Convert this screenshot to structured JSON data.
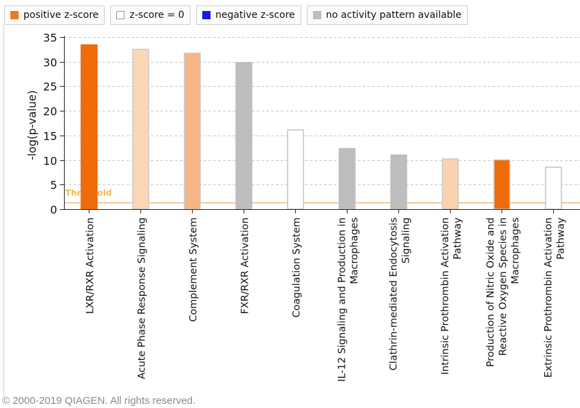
{
  "legend": {
    "items": [
      {
        "label": "positive z-score",
        "color": "#f07a1a",
        "border": "#f07a1a"
      },
      {
        "label": "z-score = 0",
        "color": "#ffffff",
        "border": "#9a9a9a"
      },
      {
        "label": "negative z-score",
        "color": "#1a1ae0",
        "border": "#1a1ae0"
      },
      {
        "label": "no activity pattern available",
        "color": "#bdbdbd",
        "border": "#bdbdbd"
      }
    ]
  },
  "chart_data": {
    "type": "bar",
    "ylabel": "-log(p-value)",
    "xlabel": "",
    "ylim": [
      0,
      35
    ],
    "yticks": [
      0,
      5,
      10,
      15,
      20,
      25,
      30,
      35
    ],
    "grid": true,
    "threshold": {
      "label": "Threshold",
      "value": 1.3
    },
    "categories": [
      {
        "lines": [
          "LXR/RXR Activation"
        ],
        "value": 33.5,
        "fill": "#ee6c0a",
        "stroke": "#e3670f"
      },
      {
        "lines": [
          "Acute Phase Response Signaling"
        ],
        "value": 32.6,
        "fill": "#fbd6b6",
        "stroke": "#c9c9c9"
      },
      {
        "lines": [
          "Complement System"
        ],
        "value": 31.8,
        "fill": "#f5b585",
        "stroke": "#c9c9c9"
      },
      {
        "lines": [
          "FXR/RXR Activation"
        ],
        "value": 29.9,
        "fill": "#bdbdbd",
        "stroke": "#bdbdbd"
      },
      {
        "lines": [
          "Coagulation System"
        ],
        "value": 16.2,
        "fill": "#ffffff",
        "stroke": "#c2c2c2"
      },
      {
        "lines": [
          "IL-12 Signaling and Production in",
          "Macrophages"
        ],
        "value": 12.4,
        "fill": "#bdbdbd",
        "stroke": "#bdbdbd"
      },
      {
        "lines": [
          "Clathrin-mediated Endocytosis",
          "Signaling"
        ],
        "value": 11.1,
        "fill": "#bdbdbd",
        "stroke": "#bdbdbd"
      },
      {
        "lines": [
          "Intrinsic Prothrombin Activation",
          "Pathway"
        ],
        "value": 10.3,
        "fill": "#fbd2b0",
        "stroke": "#c9c9c9"
      },
      {
        "lines": [
          "Production of Nitric Oxide and",
          "Reactive Oxygen Species in",
          "Macrophages"
        ],
        "value": 10.1,
        "fill": "#ee6c0a",
        "stroke": "#c9c9c9"
      },
      {
        "lines": [
          "Extrinsic Prothrombin Activation",
          "Pathway"
        ],
        "value": 8.6,
        "fill": "#ffffff",
        "stroke": "#c2c2c2"
      }
    ]
  },
  "footer": {
    "copyright": "© 2000-2019 QIAGEN. All rights reserved."
  }
}
